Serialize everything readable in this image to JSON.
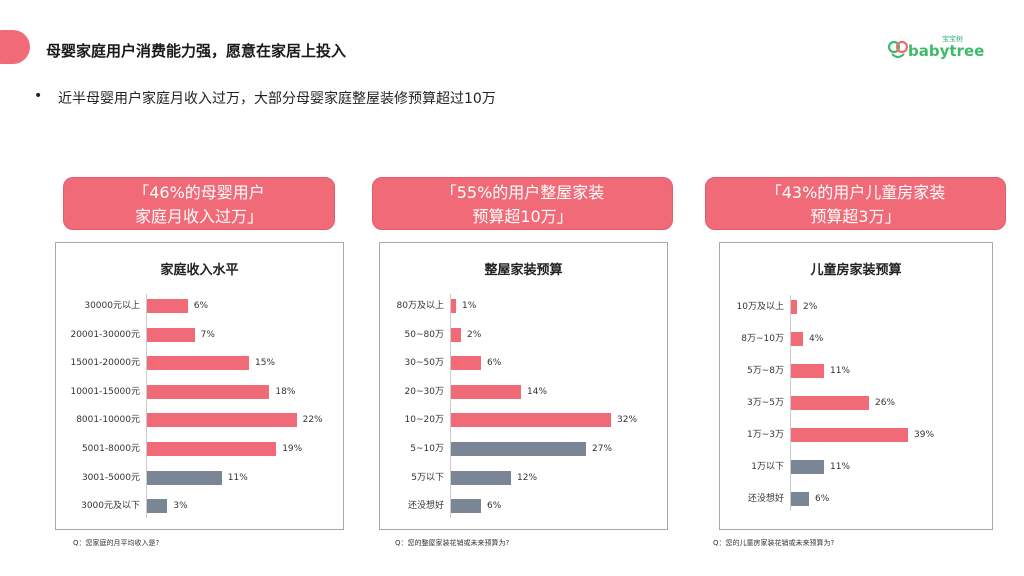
{
  "header": {
    "title": "母婴家庭用户消费能力强，愿意在家居上投入",
    "logo_small": "宝宝树",
    "logo_word": "babytree"
  },
  "bullet": {
    "marker": "•",
    "text": "近半母婴用户家庭月收入过万，大部分母婴家庭整屋装修预算超过10万"
  },
  "colors": {
    "red": "#f06a78",
    "gray": "#7a8595",
    "accent": "#f06a78"
  },
  "panels": [
    {
      "callout_line1": "「46%的母婴用户",
      "callout_line2": "家庭月收入过万」",
      "title": "家庭收入水平",
      "question": "Q：您家庭的月平均收入是?",
      "rows": [
        {
          "label": "30000元以上",
          "value": 6,
          "text": "6%",
          "color": "red"
        },
        {
          "label": "20001-30000元",
          "value": 7,
          "text": "7%",
          "color": "red"
        },
        {
          "label": "15001-20000元",
          "value": 15,
          "text": "15%",
          "color": "red"
        },
        {
          "label": "10001-15000元",
          "value": 18,
          "text": "18%",
          "color": "red"
        },
        {
          "label": "8001-10000元",
          "value": 22,
          "text": "22%",
          "color": "red"
        },
        {
          "label": "5001-8000元",
          "value": 19,
          "text": "19%",
          "color": "red"
        },
        {
          "label": "3001-5000元",
          "value": 11,
          "text": "11%",
          "color": "gray"
        },
        {
          "label": "3000元及以下",
          "value": 3,
          "text": "3%",
          "color": "gray"
        }
      ]
    },
    {
      "callout_line1": "「55%的用户整屋家装",
      "callout_line2": "预算超10万」",
      "title": "整屋家装预算",
      "question": "Q：您的整屋家装花销或未来预算为?",
      "rows": [
        {
          "label": "80万及以上",
          "value": 1,
          "text": "1%",
          "color": "red"
        },
        {
          "label": "50~80万",
          "value": 2,
          "text": "2%",
          "color": "red"
        },
        {
          "label": "30~50万",
          "value": 6,
          "text": "6%",
          "color": "red"
        },
        {
          "label": "20~30万",
          "value": 14,
          "text": "14%",
          "color": "red"
        },
        {
          "label": "10~20万",
          "value": 32,
          "text": "32%",
          "color": "red"
        },
        {
          "label": "5~10万",
          "value": 27,
          "text": "27%",
          "color": "gray"
        },
        {
          "label": "5万以下",
          "value": 12,
          "text": "12%",
          "color": "gray"
        },
        {
          "label": "还没想好",
          "value": 6,
          "text": "6%",
          "color": "gray"
        }
      ]
    },
    {
      "callout_line1": "「43%的用户儿童房家装",
      "callout_line2": "预算超3万」",
      "title": "儿童房家装预算",
      "question": "Q：您的儿童房家装花销或未来预算为?",
      "rows": [
        {
          "label": "10万及以上",
          "value": 2,
          "text": "2%",
          "color": "red"
        },
        {
          "label": "8万~10万",
          "value": 4,
          "text": "4%",
          "color": "red"
        },
        {
          "label": "5万~8万",
          "value": 11,
          "text": "11%",
          "color": "red"
        },
        {
          "label": "3万~5万",
          "value": 26,
          "text": "26%",
          "color": "red"
        },
        {
          "label": "1万~3万",
          "value": 39,
          "text": "39%",
          "color": "red"
        },
        {
          "label": "1万以下",
          "value": 11,
          "text": "11%",
          "color": "gray"
        },
        {
          "label": "还没想好",
          "value": 6,
          "text": "6%",
          "color": "gray"
        }
      ]
    }
  ]
}
